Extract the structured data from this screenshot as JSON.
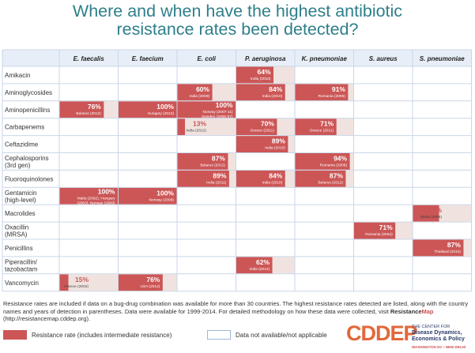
{
  "title": {
    "line1": "Where and when have the highest antibiotic",
    "line2": "resistance rates been detected?"
  },
  "colors": {
    "resistance": "#cc5656",
    "na": "#f0e3df",
    "title": "#2e7f8a",
    "grid": "#c9d6e8",
    "header_bg": "#e8eef7"
  },
  "chart_data": {
    "type": "table",
    "columns": [
      "E. faecalis",
      "E. faecium",
      "E. coli",
      "P. aeruginosa",
      "K. pneumoniae",
      "S. aureus",
      "S. pneumoniae"
    ],
    "rows": [
      {
        "label": [
          "Amikacin"
        ],
        "cells": [
          {
            "state": "empty"
          },
          {
            "state": "empty"
          },
          {
            "state": "empty"
          },
          {
            "state": "rate",
            "value": 64,
            "text": "64%",
            "note": [
              "India (2010)"
            ]
          },
          {
            "state": "empty"
          },
          {
            "state": "empty"
          },
          {
            "state": "empty"
          }
        ]
      },
      {
        "label": [
          "Aminoglycosides"
        ],
        "cells": [
          {
            "state": "empty"
          },
          {
            "state": "empty"
          },
          {
            "state": "rate",
            "value": 60,
            "text": "60%",
            "note": [
              "India (2009)"
            ]
          },
          {
            "state": "rate",
            "value": 84,
            "text": "84%",
            "note": [
              "India (2010)"
            ]
          },
          {
            "state": "rate",
            "value": 91,
            "text": "91%",
            "note": [
              "Romania (2006)"
            ]
          },
          {
            "state": "empty"
          },
          {
            "state": "empty"
          }
        ]
      },
      {
        "label": [
          "Aminopenicillins"
        ],
        "cells": [
          {
            "state": "rate",
            "value": 76,
            "text": "76%",
            "note": [
              "Belarus (2012)"
            ]
          },
          {
            "state": "rate",
            "value": 100,
            "text": "100%",
            "note": [
              "Hungary (2013)"
            ]
          },
          {
            "state": "rate",
            "value": 100,
            "text": "100%",
            "note": [
              "Norway (2007-11)",
              "Sweden (2006-07)"
            ]
          },
          {
            "state": "empty"
          },
          {
            "state": "empty"
          },
          {
            "state": "empty"
          },
          {
            "state": "empty"
          }
        ]
      },
      {
        "label": [
          "Carbapenems"
        ],
        "cells": [
          {
            "state": "empty"
          },
          {
            "state": "empty"
          },
          {
            "state": "rate",
            "value": 13,
            "text": "13%",
            "note": [
              "India (2012)"
            ]
          },
          {
            "state": "rate",
            "value": 70,
            "text": "70%",
            "note": [
              "Greece (2011)"
            ]
          },
          {
            "state": "rate",
            "value": 71,
            "text": "71%",
            "note": [
              "Greece (2011)"
            ]
          },
          {
            "state": "empty"
          },
          {
            "state": "empty"
          }
        ]
      },
      {
        "label": [
          "Ceftazidime"
        ],
        "cells": [
          {
            "state": "empty"
          },
          {
            "state": "empty"
          },
          {
            "state": "empty"
          },
          {
            "state": "rate",
            "value": 89,
            "text": "89%",
            "note": [
              "India (2010)"
            ]
          },
          {
            "state": "empty"
          },
          {
            "state": "empty"
          },
          {
            "state": "empty"
          }
        ]
      },
      {
        "label": [
          "Cephalosporins",
          "(3rd gen)"
        ],
        "cells": [
          {
            "state": "empty"
          },
          {
            "state": "empty"
          },
          {
            "state": "rate",
            "value": 87,
            "text": "87%",
            "note": [
              "Belarus (2012)"
            ]
          },
          {
            "state": "empty"
          },
          {
            "state": "rate",
            "value": 94,
            "text": "94%",
            "note": [
              "Romania (2006)"
            ]
          },
          {
            "state": "empty"
          },
          {
            "state": "empty"
          }
        ]
      },
      {
        "label": [
          "Fluoroquinolones"
        ],
        "cells": [
          {
            "state": "empty"
          },
          {
            "state": "empty"
          },
          {
            "state": "rate",
            "value": 89,
            "text": "89%",
            "note": [
              "India (2011)"
            ]
          },
          {
            "state": "rate",
            "value": 84,
            "text": "84%",
            "note": [
              "India (2010)"
            ]
          },
          {
            "state": "rate",
            "value": 87,
            "text": "87%",
            "note": [
              "Belarus (2012)"
            ]
          },
          {
            "state": "empty"
          },
          {
            "state": "empty"
          }
        ]
      },
      {
        "label": [
          "Gentamicin",
          "(high-level)"
        ],
        "cells": [
          {
            "state": "rate",
            "value": 100,
            "text": "100%",
            "note": [
              "Malta (2002), Hungary",
              "(2003), Norway (2009)"
            ]
          },
          {
            "state": "rate",
            "value": 100,
            "text": "100%",
            "note": [
              "Norway (2009)"
            ]
          },
          {
            "state": "empty"
          },
          {
            "state": "empty"
          },
          {
            "state": "empty"
          },
          {
            "state": "empty"
          },
          {
            "state": "empty"
          }
        ]
      },
      {
        "label": [
          "Macrolides"
        ],
        "cells": [
          {
            "state": "empty"
          },
          {
            "state": "empty"
          },
          {
            "state": "empty"
          },
          {
            "state": "empty"
          },
          {
            "state": "empty"
          },
          {
            "state": "empty"
          },
          {
            "state": "rate",
            "value": 45,
            "text": "45%",
            "note": [
              "Malta (2006)"
            ]
          }
        ]
      },
      {
        "label": [
          "Oxacillin",
          "(MRSA)"
        ],
        "cells": [
          {
            "state": "empty"
          },
          {
            "state": "empty"
          },
          {
            "state": "empty"
          },
          {
            "state": "empty"
          },
          {
            "state": "empty"
          },
          {
            "state": "rate",
            "value": 71,
            "text": "71%",
            "note": [
              "Romania (2004)"
            ]
          },
          {
            "state": "empty"
          }
        ]
      },
      {
        "label": [
          "Penicillins"
        ],
        "cells": [
          {
            "state": "empty"
          },
          {
            "state": "empty"
          },
          {
            "state": "empty"
          },
          {
            "state": "empty"
          },
          {
            "state": "empty"
          },
          {
            "state": "empty"
          },
          {
            "state": "rate",
            "value": 87,
            "text": "87%",
            "note": [
              "Thailand (2010)"
            ]
          }
        ]
      },
      {
        "label": [
          "Piperacillin/",
          "tazobactam"
        ],
        "cells": [
          {
            "state": "empty"
          },
          {
            "state": "empty"
          },
          {
            "state": "empty"
          },
          {
            "state": "rate",
            "value": 62,
            "text": "62%",
            "note": [
              "India (2014)"
            ]
          },
          {
            "state": "empty"
          },
          {
            "state": "empty"
          },
          {
            "state": "empty"
          }
        ]
      },
      {
        "label": [
          "Vancomycin"
        ],
        "cells": [
          {
            "state": "rate",
            "value": 15,
            "text": "15%",
            "note": [
              "Greece (2002)"
            ]
          },
          {
            "state": "rate",
            "value": 76,
            "text": "76%",
            "note": [
              "USA (2012)"
            ]
          },
          {
            "state": "empty"
          },
          {
            "state": "empty"
          },
          {
            "state": "empty"
          },
          {
            "state": "empty"
          },
          {
            "state": "empty"
          }
        ]
      }
    ]
  },
  "footnote": {
    "text": "Resistance rates are included if data on a bug-drug combination was available for more than 30 countries. The highest resistance rates detected are listed, along with the country names and years of detection in parentheses.  Data were available for 1999-2014. For detailed methodology on how these data were collected, visit ",
    "brand_main": "Resistance",
    "brand_hl": "Map",
    "link": " (http://resistancemap.cddep.org)."
  },
  "legend": {
    "resistance_label": "Resistance rate (includes intermediate resistance)",
    "na_label": "Data not available/not applicable"
  },
  "logo": {
    "word": "CDDEP",
    "line1": "THE CENTER FOR",
    "line2": "Disease Dynamics,",
    "line3": "Economics & Policy",
    "location": "WASHINGTON DC • NEW DELHI"
  }
}
